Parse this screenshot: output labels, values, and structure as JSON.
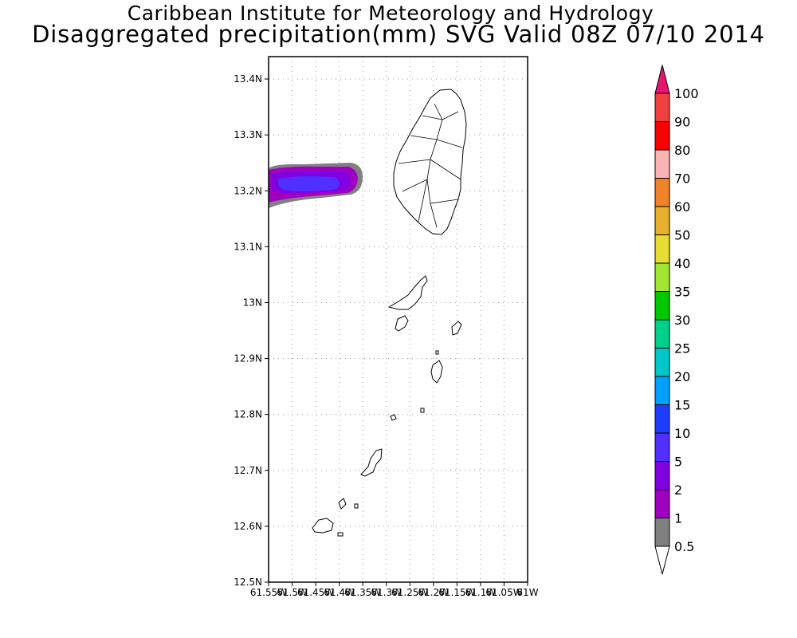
{
  "title": {
    "line1": "Caribbean Institute for Meteorology and Hydrology",
    "line2": "Disaggregated precipitation(mm) SVG Valid 08Z 07/10 2014"
  },
  "map": {
    "lon_range": [
      -61.55,
      -61.0
    ],
    "lat_range": [
      12.5,
      13.44
    ],
    "y_ticks": [
      "12.5N",
      "12.6N",
      "12.7N",
      "12.8N",
      "12.9N",
      "13N",
      "13.1N",
      "13.2N",
      "13.3N",
      "13.4N"
    ],
    "x_ticks": [
      "61.55W",
      "61.5W",
      "61.45W",
      "61.4W",
      "61.35W",
      "61.3W",
      "61.25W",
      "61.2W",
      "61.15W",
      "61.1W",
      "61.05W",
      "61W"
    ],
    "grid": true,
    "grid_style": "dotted",
    "precip_area": {
      "center_lat": 13.21,
      "lon_extent": [
        -61.55,
        -61.39
      ],
      "levels_shown": [
        "0.5",
        "1",
        "2",
        "5"
      ]
    }
  },
  "colorbar": {
    "labels": [
      "0.5",
      "1",
      "2",
      "5",
      "10",
      "15",
      "20",
      "25",
      "30",
      "35",
      "40",
      "50",
      "60",
      "70",
      "80",
      "90",
      "100"
    ],
    "colors": [
      "#808080",
      "#a000c0",
      "#8000e0",
      "#5030ff",
      "#1e3cff",
      "#00a0ff",
      "#00c8c8",
      "#00d08a",
      "#00c800",
      "#a0e632",
      "#e6dc32",
      "#e6af2d",
      "#f08228",
      "#fab4b4",
      "#fa0000",
      "#f04040",
      "#e6146e"
    ],
    "low_end_color": "#ffffff",
    "high_end_color": "#e6146e"
  }
}
